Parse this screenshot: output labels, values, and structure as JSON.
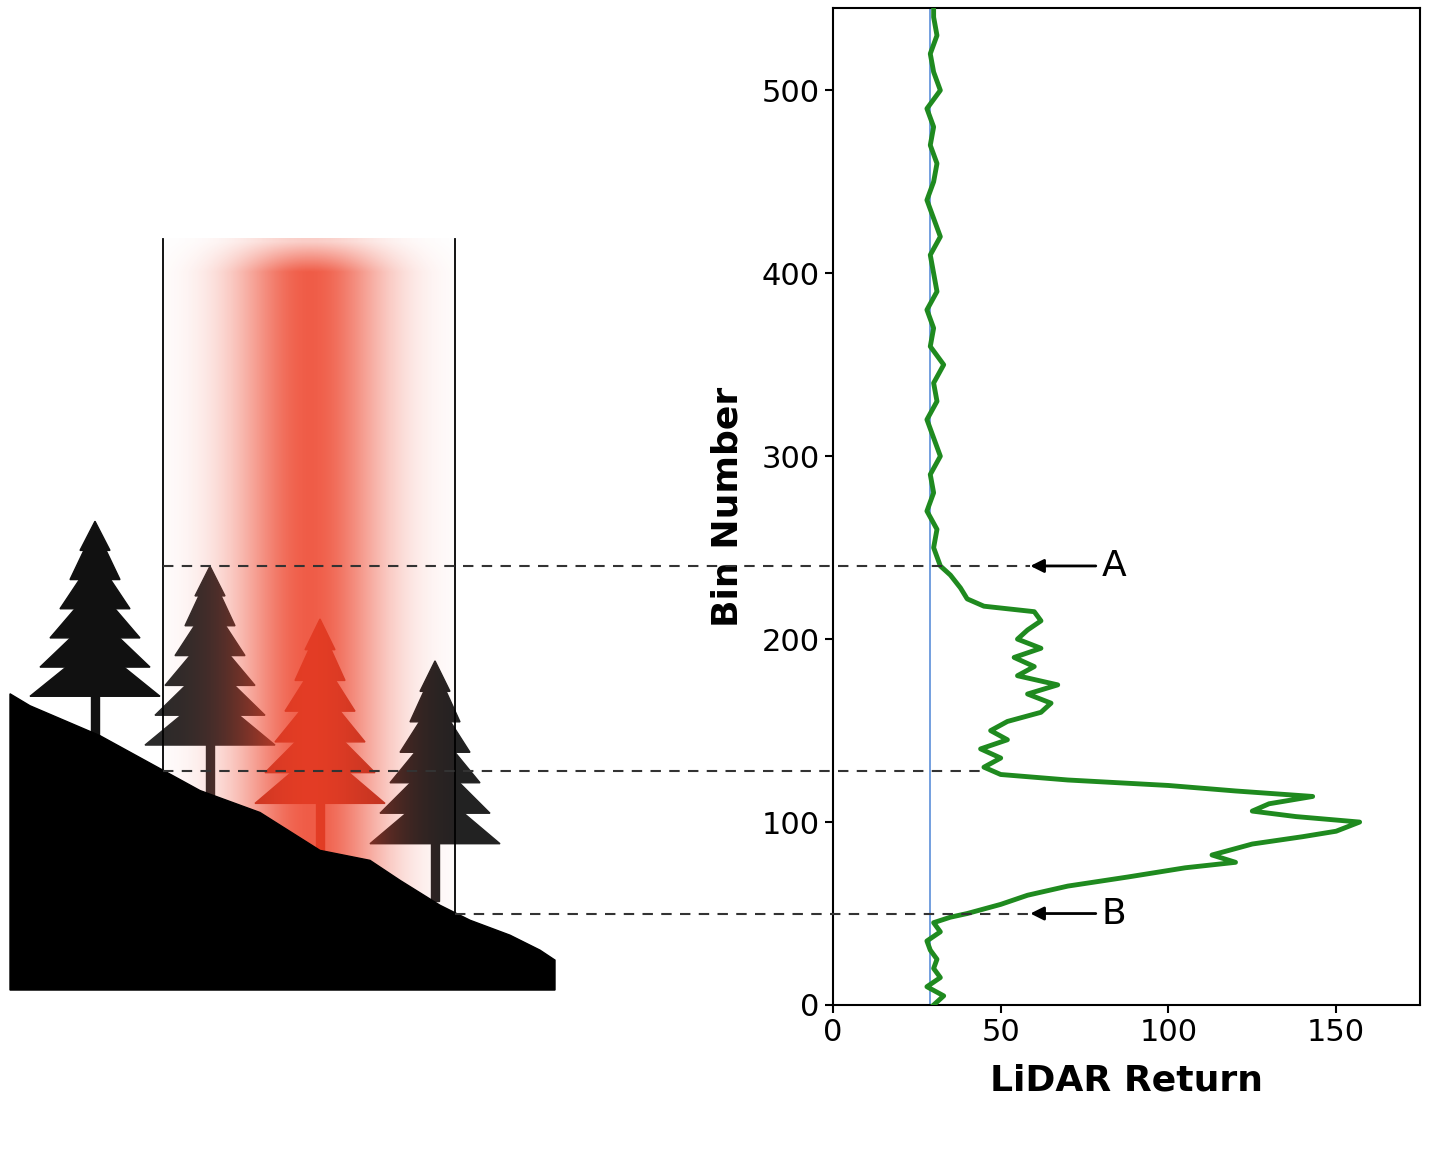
{
  "chart_data": {
    "type": "line",
    "xlabel": "LiDAR Return",
    "ylabel": "Bin Number",
    "color": "#1f8a1f",
    "x": [
      30,
      33,
      28,
      32,
      30,
      31,
      29,
      28,
      32,
      30,
      35,
      40,
      50,
      58,
      70,
      88,
      105,
      120,
      113,
      125,
      140,
      150,
      157,
      138,
      125,
      130,
      143,
      120,
      100,
      70,
      50,
      45,
      50,
      44,
      52,
      47,
      52,
      62,
      65,
      58,
      67,
      55,
      60,
      54,
      62,
      55,
      58,
      62,
      60,
      45,
      40,
      38,
      35,
      32,
      31,
      30,
      31,
      28,
      30,
      29,
      32,
      30,
      28,
      31,
      30,
      33,
      29,
      30,
      28,
      31,
      30,
      29,
      32,
      30,
      28,
      30,
      31,
      29,
      30,
      28,
      32,
      30,
      29,
      31,
      30,
      30
    ],
    "y": [
      0,
      5,
      10,
      15,
      20,
      25,
      30,
      35,
      40,
      45,
      48,
      50,
      55,
      60,
      65,
      70,
      75,
      78,
      82,
      88,
      92,
      95,
      100,
      103,
      106,
      110,
      114,
      117,
      120,
      123,
      126,
      130,
      135,
      140,
      145,
      150,
      155,
      160,
      165,
      170,
      175,
      180,
      185,
      190,
      195,
      200,
      205,
      210,
      215,
      218,
      222,
      228,
      235,
      240,
      245,
      250,
      260,
      270,
      280,
      290,
      300,
      310,
      320,
      330,
      340,
      350,
      360,
      370,
      380,
      390,
      400,
      410,
      420,
      430,
      440,
      450,
      460,
      470,
      480,
      490,
      500,
      510,
      520,
      530,
      540,
      545
    ],
    "baseline": {
      "value": 29,
      "color": "#5b8fd9"
    },
    "reference_lines": [
      240,
      128,
      50
    ],
    "annotations": [
      {
        "text": "A",
        "y": 240
      },
      {
        "text": "B",
        "y": 50
      }
    ],
    "xlim": [
      0,
      175
    ],
    "ylim": [
      0,
      545
    ],
    "xticks": [
      0,
      50,
      100,
      150
    ],
    "yticks": [
      0,
      100,
      200,
      300,
      400,
      500
    ]
  }
}
